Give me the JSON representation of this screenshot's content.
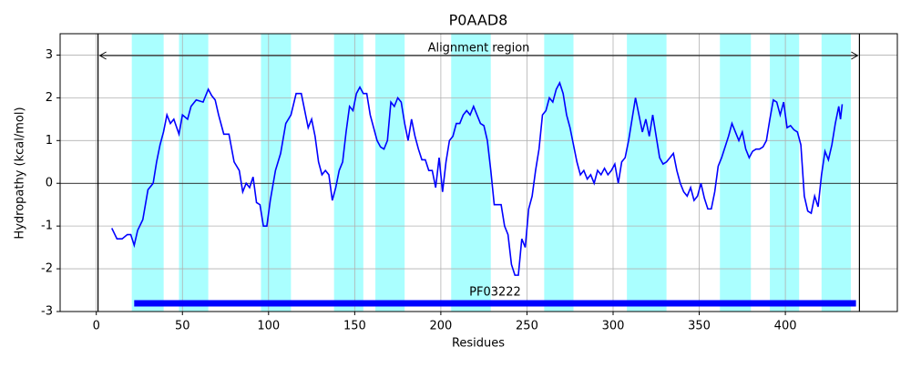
{
  "chart_data": {
    "type": "line",
    "title": "P0AAD8",
    "xlabel": "Residues",
    "ylabel": "Hydropathy (kcal/mol)",
    "x": [
      9,
      12,
      15,
      18,
      20,
      22,
      24,
      27,
      30,
      33,
      35,
      37,
      39,
      41,
      43,
      45,
      48,
      50,
      53,
      55,
      58,
      62,
      65,
      67,
      69,
      71,
      74,
      77,
      80,
      83,
      85,
      87,
      89,
      91,
      93,
      95,
      97,
      99,
      101,
      104,
      107,
      110,
      113,
      116,
      119,
      121,
      123,
      125,
      127,
      129,
      131,
      133,
      135,
      137,
      139,
      141,
      143,
      145,
      147,
      149,
      151,
      153,
      155,
      157,
      159,
      161,
      163,
      165,
      167,
      169,
      171,
      173,
      175,
      177,
      179,
      181,
      183,
      185,
      187,
      189,
      191,
      193,
      195,
      197,
      199,
      201,
      203,
      205,
      207,
      209,
      211,
      213,
      215,
      217,
      219,
      221,
      223,
      225,
      227,
      229,
      231,
      233,
      235,
      237,
      239,
      241,
      243,
      245,
      247,
      249,
      251,
      253,
      255,
      257,
      259,
      261,
      263,
      265,
      267,
      269,
      271,
      273,
      275,
      277,
      279,
      281,
      283,
      285,
      287,
      289,
      291,
      293,
      295,
      297,
      299,
      301,
      303,
      305,
      307,
      309,
      311,
      313,
      315,
      317,
      319,
      321,
      323,
      325,
      327,
      329,
      331,
      333,
      335,
      337,
      339,
      341,
      343,
      345,
      347,
      349,
      351,
      353,
      355,
      357,
      359,
      361,
      363,
      365,
      367,
      369,
      371,
      373,
      375,
      377,
      379,
      381,
      383,
      385,
      387,
      389,
      391,
      393,
      395,
      397,
      399,
      401,
      403,
      405,
      407,
      409,
      411,
      413,
      415,
      417,
      419,
      421,
      423,
      425,
      427,
      429,
      431,
      432,
      433
    ],
    "values": [
      -1.05,
      -1.3,
      -1.3,
      -1.2,
      -1.2,
      -1.45,
      -1.1,
      -0.85,
      -0.15,
      0.0,
      0.5,
      0.9,
      1.2,
      1.6,
      1.4,
      1.5,
      1.15,
      1.6,
      1.5,
      1.8,
      1.95,
      1.9,
      2.2,
      2.05,
      1.95,
      1.6,
      1.15,
      1.15,
      0.5,
      0.3,
      -0.2,
      0.0,
      -0.1,
      0.15,
      -0.45,
      -0.5,
      -1.0,
      -1.0,
      -0.4,
      0.3,
      0.7,
      1.4,
      1.6,
      2.1,
      2.1,
      1.7,
      1.3,
      1.5,
      1.1,
      0.5,
      0.2,
      0.3,
      0.2,
      -0.4,
      -0.1,
      0.3,
      0.5,
      1.2,
      1.8,
      1.7,
      2.1,
      2.25,
      2.1,
      2.1,
      1.6,
      1.3,
      1.0,
      0.85,
      0.8,
      1.0,
      1.9,
      1.8,
      2.0,
      1.9,
      1.4,
      1.0,
      1.5,
      1.1,
      0.8,
      0.55,
      0.55,
      0.3,
      0.3,
      -0.1,
      0.6,
      -0.2,
      0.5,
      1.0,
      1.1,
      1.4,
      1.4,
      1.6,
      1.7,
      1.6,
      1.8,
      1.6,
      1.4,
      1.35,
      1.0,
      0.3,
      -0.5,
      -0.5,
      -0.5,
      -1.0,
      -1.2,
      -1.9,
      -2.15,
      -2.15,
      -1.3,
      -1.5,
      -0.6,
      -0.3,
      0.3,
      0.8,
      1.6,
      1.7,
      2.0,
      1.9,
      2.2,
      2.35,
      2.1,
      1.6,
      1.3,
      0.9,
      0.5,
      0.2,
      0.3,
      0.1,
      0.2,
      0.0,
      0.3,
      0.2,
      0.35,
      0.2,
      0.3,
      0.45,
      0.0,
      0.5,
      0.6,
      1.0,
      1.5,
      2.0,
      1.6,
      1.2,
      1.5,
      1.1,
      1.6,
      1.1,
      0.6,
      0.45,
      0.5,
      0.6,
      0.7,
      0.3,
      0.0,
      -0.2,
      -0.3,
      -0.1,
      -0.4,
      -0.3,
      0.0,
      -0.35,
      -0.6,
      -0.6,
      -0.2,
      0.4,
      0.6,
      0.85,
      1.1,
      1.4,
      1.2,
      1.0,
      1.2,
      0.8,
      0.6,
      0.75,
      0.8,
      0.8,
      0.85,
      1.0,
      1.5,
      1.95,
      1.9,
      1.6,
      1.9,
      1.3,
      1.35,
      1.25,
      1.2,
      0.9,
      -0.3,
      -0.65,
      -0.7,
      -0.3,
      -0.55,
      0.2,
      0.75,
      0.55,
      0.9,
      1.4,
      1.8,
      1.5,
      1.85
    ],
    "color": "#0000ff",
    "bands": [
      [
        20.6,
        39.1
      ],
      [
        48,
        65
      ],
      [
        95.6,
        113
      ],
      [
        138,
        155
      ],
      [
        162,
        179
      ],
      [
        206,
        229
      ],
      [
        260,
        277
      ],
      [
        308,
        331
      ],
      [
        362,
        380
      ],
      [
        391,
        408
      ],
      [
        421,
        438
      ]
    ],
    "band_color": "#aaffff",
    "alignment": {
      "label": "Alignment region",
      "start": 1,
      "end": 443
    },
    "domain": {
      "label": "PF03222",
      "start": 22,
      "end": 441,
      "color": "#0000ff"
    },
    "xlim": [
      -21,
      465
    ],
    "ylim": [
      -3,
      3.5
    ],
    "xticks": [
      0,
      50,
      100,
      150,
      200,
      250,
      300,
      350,
      400
    ],
    "yticks": [
      -3,
      -2,
      -1,
      0,
      1,
      2,
      3
    ],
    "grid": true
  }
}
